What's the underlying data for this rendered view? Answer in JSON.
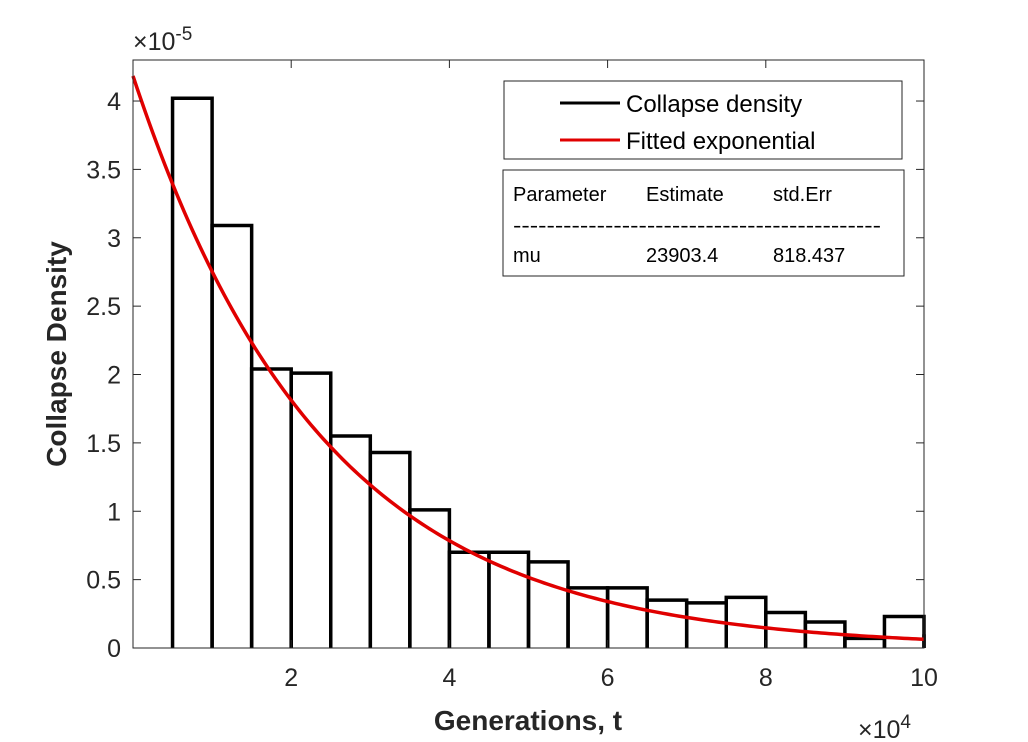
{
  "chart_data": {
    "type": "bar",
    "xlabel": "Generations, t",
    "ylabel": "Collapse Density",
    "x_multiplier": "×10",
    "x_exponent": "4",
    "y_multiplier": "×10",
    "y_exponent": "-5",
    "xlim": [
      0,
      100000
    ],
    "ylim": [
      0,
      4.3e-05
    ],
    "xticks": [
      20000,
      40000,
      60000,
      80000,
      100000
    ],
    "xtick_labels": [
      "2",
      "4",
      "6",
      "8",
      "10"
    ],
    "yticks": [
      0,
      5e-06,
      1e-05,
      1.5e-05,
      2e-05,
      2.5e-05,
      3e-05,
      3.5e-05,
      4e-05
    ],
    "ytick_labels": [
      "0",
      "0.5",
      "1",
      "1.5",
      "2",
      "2.5",
      "3",
      "3.5",
      "4"
    ],
    "grid": false,
    "legend_position": "top-right",
    "series": [
      {
        "name": "Collapse density",
        "kind": "stairs",
        "color": "#000000",
        "bin_edges": [
          5000,
          10000,
          15000,
          20000,
          25000,
          30000,
          35000,
          40000,
          45000,
          50000,
          55000,
          60000,
          65000,
          70000,
          75000,
          80000,
          85000,
          90000,
          95000,
          100000
        ],
        "values": [
          4.02e-05,
          3.09e-05,
          2.04e-05,
          2.01e-05,
          1.55e-05,
          1.43e-05,
          1.01e-05,
          7e-06,
          7e-06,
          6.3e-06,
          4.4e-06,
          4.4e-06,
          3.5e-06,
          3.3e-06,
          3.7e-06,
          2.6e-06,
          1.9e-06,
          7e-07,
          2.3e-06,
          1e-06
        ]
      },
      {
        "name": "Fitted exponential",
        "kind": "line",
        "color": "#e00000",
        "function": "exponential",
        "mu": 23903.4,
        "x_range": [
          0,
          100000
        ]
      }
    ]
  },
  "fit_table": {
    "headers": [
      "Parameter",
      "Estimate",
      "std.Err"
    ],
    "separator": "--------------------------------------------",
    "rows": [
      [
        "mu",
        "23903.4",
        "818.437"
      ]
    ]
  }
}
